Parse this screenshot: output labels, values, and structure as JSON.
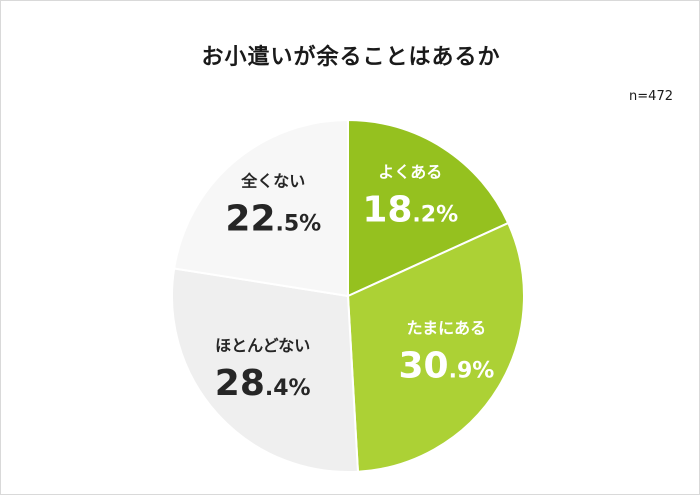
{
  "title": "お小遣いが余ることはあるか",
  "sample_size": "n=472",
  "chart_data": {
    "type": "pie",
    "title": "お小遣いが余ることはあるか",
    "start_angle_deg": 0,
    "direction": "clockwise",
    "slices": [
      {
        "label": "よくある",
        "value": 18.2,
        "int": "18",
        "dec": ".2%",
        "color": "#95c11f",
        "text_color": "#ffffff"
      },
      {
        "label": "たまにある",
        "value": 30.9,
        "int": "30",
        "dec": ".9%",
        "color": "#acd135",
        "text_color": "#ffffff"
      },
      {
        "label": "ほとんどない",
        "value": 28.4,
        "int": "28",
        "dec": ".4%",
        "color": "#efefef",
        "text_color": "#262626"
      },
      {
        "label": "全くない",
        "value": 22.5,
        "int": "22",
        "dec": ".5%",
        "color": "#f7f7f7",
        "text_color": "#262626"
      }
    ]
  }
}
